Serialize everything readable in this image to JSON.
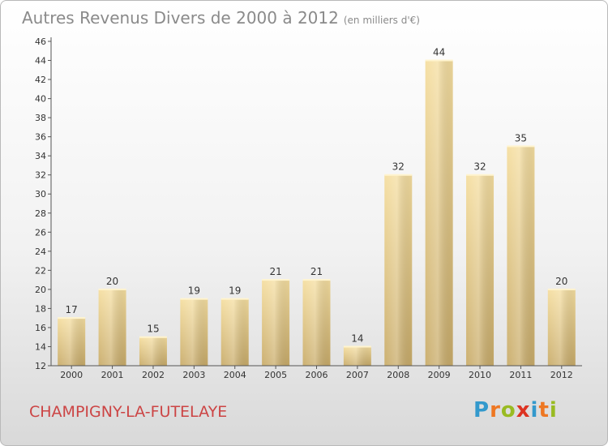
{
  "header": {
    "title": "Autres Revenus Divers de 2000 à 2012",
    "subtitle": "(en milliers d'€)"
  },
  "footer": {
    "commune": "CHAMPIGNY-LA-FUTELAYE",
    "logo_letters": [
      "P",
      "r",
      "o",
      "x",
      "i",
      "t",
      "i"
    ],
    "logo_colors": [
      "#3399cc",
      "#ee7722",
      "#99bb22",
      "#dd3322",
      "#3399cc",
      "#ee7722",
      "#99bb22"
    ]
  },
  "chart_data": {
    "type": "bar",
    "title": "Autres Revenus Divers de 2000 à 2012",
    "subtitle": "(en milliers d'€)",
    "categories": [
      "2000",
      "2001",
      "2002",
      "2003",
      "2004",
      "2005",
      "2006",
      "2007",
      "2008",
      "2009",
      "2010",
      "2011",
      "2012"
    ],
    "values": [
      17,
      20,
      15,
      19,
      19,
      21,
      21,
      14,
      32,
      44,
      32,
      35,
      20
    ],
    "ylim": [
      12,
      46
    ],
    "yticks": [
      12,
      14,
      16,
      18,
      20,
      22,
      24,
      26,
      28,
      30,
      32,
      34,
      36,
      38,
      40,
      42,
      44,
      46
    ],
    "xlabel": "",
    "ylabel": "",
    "grid": false,
    "bar_color": "#e8cd7e",
    "data_labels": true
  }
}
